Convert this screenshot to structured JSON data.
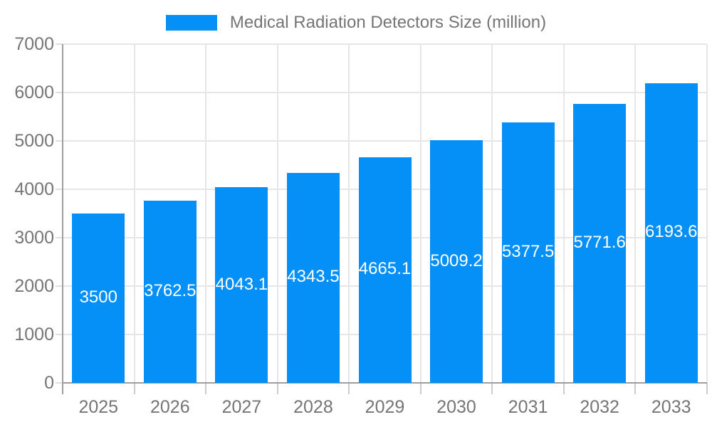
{
  "legend": {
    "label": "Medical Radiation Detectors Size (million)"
  },
  "chart_data": {
    "type": "bar",
    "title": "Medical Radiation Detectors Size (million)",
    "categories": [
      "2025",
      "2026",
      "2027",
      "2028",
      "2029",
      "2030",
      "2031",
      "2032",
      "2033"
    ],
    "values": [
      3500,
      3762.5,
      4043.1,
      4343.5,
      4665.1,
      5009.2,
      5377.5,
      5771.6,
      6193.6
    ],
    "value_labels": [
      "3500",
      "3762.5",
      "4043.1",
      "4343.5",
      "4665.1",
      "5009.2",
      "5377.5",
      "5771.6",
      "6193.6"
    ],
    "xlabel": "",
    "ylabel": "",
    "ylim": [
      0,
      7000
    ],
    "yticks": [
      0,
      1000,
      2000,
      3000,
      4000,
      5000,
      6000,
      7000
    ],
    "grid": true,
    "legend_position": "top-center",
    "value_labels_position": "inside-center",
    "colors": {
      "bar": "#0590f8",
      "bar_label": "#ffffff",
      "axis_text": "#757575",
      "gridline": "#e6e6e6",
      "axis_line": "#9e9e9e",
      "x_tick": "#cccccc",
      "y_tick": "#e0e0e0",
      "background": "#ffffff"
    }
  }
}
